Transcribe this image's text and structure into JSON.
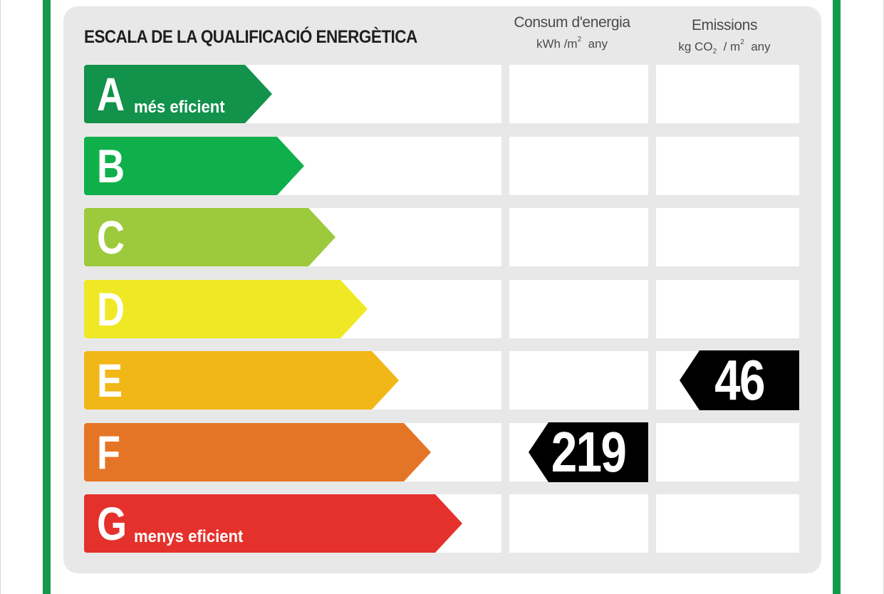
{
  "title": "ESCALA DE LA QUALIFICACIÓ ENERGÈTICA",
  "columns": {
    "consumption": {
      "heading": "Consum d'energia",
      "unit_main": "kWh /m",
      "unit_sup": "2",
      "unit_tail": "any"
    },
    "emissions": {
      "heading": "Emissions",
      "unit_kg": "kg CO",
      "unit_sub": "2",
      "unit_mid": "/ m",
      "unit_sup": "2",
      "unit_tail": "any"
    }
  },
  "bands": [
    {
      "letter": "A",
      "label": "més eficient",
      "color": "#12924b"
    },
    {
      "letter": "B",
      "label": "",
      "color": "#0fb04b"
    },
    {
      "letter": "C",
      "label": "",
      "color": "#9cca3c"
    },
    {
      "letter": "D",
      "label": "",
      "color": "#efe925"
    },
    {
      "letter": "E",
      "label": "",
      "color": "#f1b717"
    },
    {
      "letter": "F",
      "label": "",
      "color": "#e57526"
    },
    {
      "letter": "G",
      "label": "menys eficient",
      "color": "#e5312c"
    }
  ],
  "ratings": {
    "consumption": {
      "value": "219",
      "band": "F"
    },
    "emissions": {
      "value": "46",
      "band": "E"
    }
  }
}
